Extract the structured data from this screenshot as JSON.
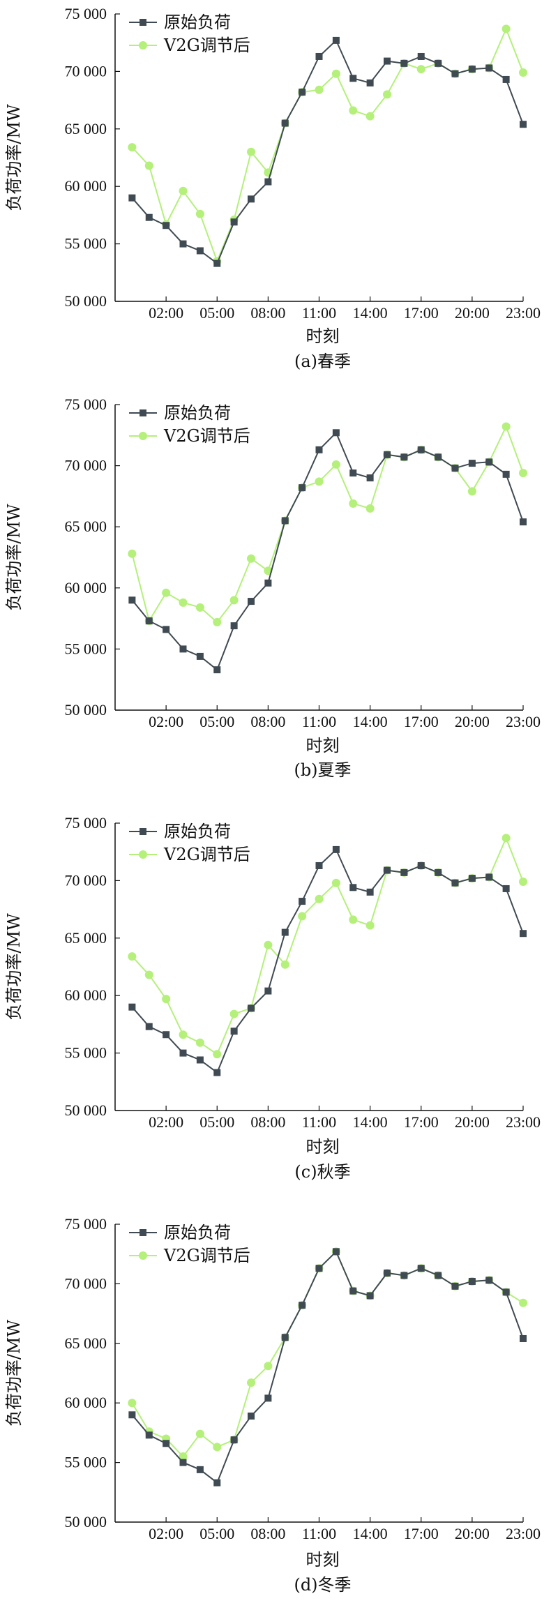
{
  "colors": {
    "original": "#3f4a52",
    "v2g": "#b4f07a",
    "axis": "#111111"
  },
  "chart_data": [
    {
      "type": "line",
      "caption": "(a)春季",
      "xlabel": "时刻",
      "ylabel": "负荷功率/MW",
      "ylim": [
        50000,
        75000
      ],
      "yticks": [
        50000,
        55000,
        60000,
        65000,
        70000,
        75000
      ],
      "ytick_labels": [
        "50 000",
        "55 000",
        "60 000",
        "65 000",
        "70 000",
        "75 000"
      ],
      "xlim": [
        -1,
        23
      ],
      "xticks": [
        2,
        5,
        8,
        11,
        14,
        17,
        20,
        23
      ],
      "xtick_labels": [
        "02:00",
        "05:00",
        "08:00",
        "11:00",
        "14:00",
        "17:00",
        "20:00",
        "23:00"
      ],
      "legend": "top-left",
      "x": [
        0,
        1,
        2,
        3,
        4,
        5,
        6,
        7,
        8,
        9,
        10,
        11,
        12,
        13,
        14,
        15,
        16,
        17,
        18,
        19,
        20,
        21,
        22,
        23
      ],
      "series": [
        {
          "name": "原始负荷",
          "marker": "square",
          "values": [
            59000,
            57300,
            56600,
            55000,
            54400,
            53300,
            56900,
            58900,
            60400,
            65500,
            68200,
            71300,
            72700,
            69400,
            69000,
            70900,
            70700,
            71300,
            70700,
            69800,
            70200,
            70300,
            69300,
            65400
          ]
        },
        {
          "name": "V2G调节后",
          "marker": "circle",
          "values": [
            63400,
            61800,
            56700,
            59600,
            57600,
            53500,
            57100,
            63000,
            61200,
            65500,
            68200,
            68400,
            69800,
            66600,
            66100,
            68000,
            70700,
            70200,
            70700,
            69800,
            70200,
            70300,
            73700,
            69900
          ]
        }
      ]
    },
    {
      "type": "line",
      "caption": "(b)夏季",
      "xlabel": "时刻",
      "ylabel": "负荷功率/MW",
      "ylim": [
        50000,
        75000
      ],
      "yticks": [
        50000,
        55000,
        60000,
        65000,
        70000,
        75000
      ],
      "ytick_labels": [
        "50 000",
        "55 000",
        "60 000",
        "65 000",
        "70 000",
        "75 000"
      ],
      "xlim": [
        -1,
        23
      ],
      "xticks": [
        2,
        5,
        8,
        11,
        14,
        17,
        20,
        23
      ],
      "xtick_labels": [
        "02:00",
        "05:00",
        "08:00",
        "11:00",
        "14:00",
        "17:00",
        "20:00",
        "23:00"
      ],
      "legend": "top-left",
      "x": [
        0,
        1,
        2,
        3,
        4,
        5,
        6,
        7,
        8,
        9,
        10,
        11,
        12,
        13,
        14,
        15,
        16,
        17,
        18,
        19,
        20,
        21,
        22,
        23
      ],
      "series": [
        {
          "name": "原始负荷",
          "marker": "square",
          "values": [
            59000,
            57300,
            56600,
            55000,
            54400,
            53300,
            56900,
            58900,
            60400,
            65500,
            68200,
            71300,
            72700,
            69400,
            69000,
            70900,
            70700,
            71300,
            70700,
            69800,
            70200,
            70300,
            69300,
            65400
          ]
        },
        {
          "name": "V2G调节后",
          "marker": "circle",
          "values": [
            62800,
            57300,
            59600,
            58800,
            58400,
            57200,
            59000,
            62400,
            61400,
            65500,
            68200,
            68700,
            70100,
            66900,
            66500,
            70900,
            70700,
            71300,
            70700,
            69800,
            67900,
            70300,
            73200,
            69400
          ]
        }
      ]
    },
    {
      "type": "line",
      "caption": "(c)秋季",
      "xlabel": "时刻",
      "ylabel": "负荷功率/MW",
      "ylim": [
        50000,
        75000
      ],
      "yticks": [
        50000,
        55000,
        60000,
        65000,
        70000,
        75000
      ],
      "ytick_labels": [
        "50 000",
        "55 000",
        "60 000",
        "65 000",
        "70 000",
        "75 000"
      ],
      "xlim": [
        -1,
        23
      ],
      "xticks": [
        2,
        5,
        8,
        11,
        14,
        17,
        20,
        23
      ],
      "xtick_labels": [
        "02:00",
        "05:00",
        "08:00",
        "11:00",
        "14:00",
        "17:00",
        "20:00",
        "23:00"
      ],
      "legend": "top-left",
      "x": [
        0,
        1,
        2,
        3,
        4,
        5,
        6,
        7,
        8,
        9,
        10,
        11,
        12,
        13,
        14,
        15,
        16,
        17,
        18,
        19,
        20,
        21,
        22,
        23
      ],
      "series": [
        {
          "name": "原始负荷",
          "marker": "square",
          "values": [
            59000,
            57300,
            56600,
            55000,
            54400,
            53300,
            56900,
            58900,
            60400,
            65500,
            68200,
            71300,
            72700,
            69400,
            69000,
            70900,
            70700,
            71300,
            70700,
            69800,
            70200,
            70300,
            69300,
            65400
          ]
        },
        {
          "name": "V2G调节后",
          "marker": "circle",
          "values": [
            63400,
            61800,
            59700,
            56600,
            55900,
            54900,
            58400,
            58900,
            64400,
            62700,
            66900,
            68400,
            69800,
            66600,
            66100,
            70900,
            70700,
            71300,
            70700,
            69800,
            70200,
            70300,
            73700,
            69900
          ]
        }
      ]
    },
    {
      "type": "line",
      "caption": "(d)冬季",
      "xlabel": "时刻",
      "ylabel": "负荷功率/MW",
      "ylim": [
        50000,
        75000
      ],
      "yticks": [
        50000,
        55000,
        60000,
        65000,
        70000,
        75000
      ],
      "ytick_labels": [
        "50 000",
        "55 000",
        "60 000",
        "65 000",
        "70 000",
        "75 000"
      ],
      "xlim": [
        -1,
        23
      ],
      "xticks": [
        2,
        5,
        8,
        11,
        14,
        17,
        20,
        23
      ],
      "xtick_labels": [
        "02:00",
        "05:00",
        "08:00",
        "11:00",
        "14:00",
        "17:00",
        "20:00",
        "23:00"
      ],
      "legend": "top-left",
      "x": [
        0,
        1,
        2,
        3,
        4,
        5,
        6,
        7,
        8,
        9,
        10,
        11,
        12,
        13,
        14,
        15,
        16,
        17,
        18,
        19,
        20,
        21,
        22,
        23
      ],
      "series": [
        {
          "name": "原始负荷",
          "marker": "square",
          "values": [
            59000,
            57300,
            56600,
            55000,
            54400,
            53300,
            56900,
            58900,
            60400,
            65500,
            68200,
            71300,
            72700,
            69400,
            69000,
            70900,
            70700,
            71300,
            70700,
            69800,
            70200,
            70300,
            69300,
            65400
          ]
        },
        {
          "name": "V2G调节后",
          "marker": "circle",
          "values": [
            60000,
            57600,
            57000,
            55500,
            57400,
            56300,
            56900,
            61700,
            63100,
            65500,
            68200,
            71300,
            72700,
            69400,
            69000,
            70900,
            70700,
            71300,
            70700,
            69800,
            70200,
            70300,
            69300,
            68400
          ]
        }
      ]
    }
  ]
}
